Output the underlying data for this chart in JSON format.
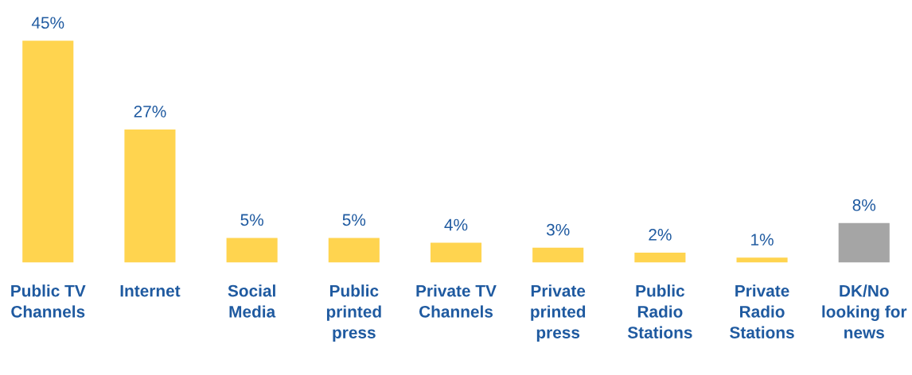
{
  "chart_data": {
    "type": "bar",
    "categories": [
      "Public TV\nChannels",
      "Internet",
      "Social\nMedia",
      "Public\nprinted\npress",
      "Private TV\nChannels",
      "Private\nprinted\npress",
      "Public\nRadio\nStations",
      "Private\nRadio\nStations",
      "DK/No\nlooking for\nnews"
    ],
    "values": [
      45,
      27,
      5,
      5,
      4,
      3,
      2,
      1,
      8
    ],
    "value_labels": [
      "45%",
      "27%",
      "5%",
      "5%",
      "4%",
      "3%",
      "2%",
      "1%",
      "8%"
    ],
    "colors": [
      "#ffd44f",
      "#ffd44f",
      "#ffd44f",
      "#ffd44f",
      "#ffd44f",
      "#ffd44f",
      "#ffd44f",
      "#ffd44f",
      "#a5a5a5"
    ],
    "tick_labels": "x",
    "grid": false,
    "legend": false
  }
}
